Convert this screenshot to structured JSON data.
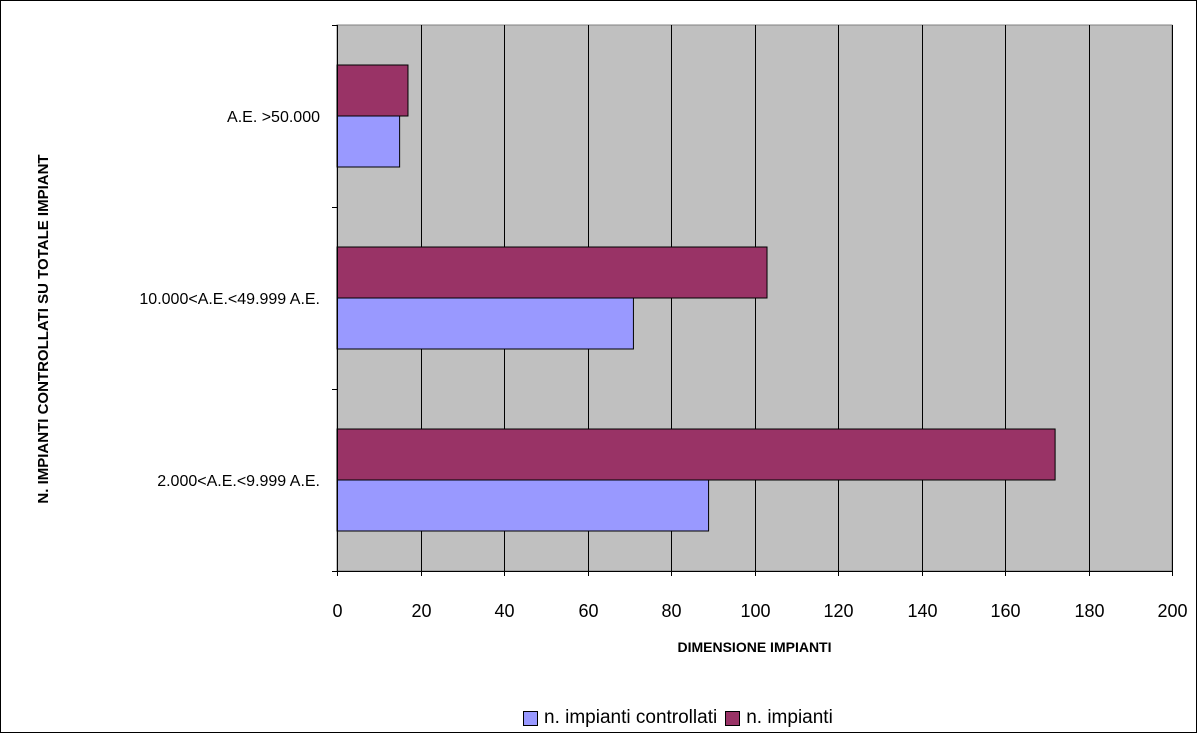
{
  "chart_data": {
    "type": "bar",
    "orientation": "horizontal",
    "xlabel": "DIMENSIONE IMPIANTI",
    "ylabel": "N. IMPIANTI CONTROLLATI SU TOTALE IMPIANT",
    "categories": [
      "A.E. >50.000",
      "10.000<A.E.<49.999 A.E.",
      "2.000<A.E.<9.999 A.E."
    ],
    "series": [
      {
        "name": "n. impianti controllati",
        "color": "#9999ff",
        "values": [
          15,
          71,
          89
        ]
      },
      {
        "name": "n. impianti",
        "color": "#993366",
        "values": [
          17,
          103,
          172
        ]
      }
    ],
    "xlim": [
      0,
      200
    ],
    "xticks": [
      0,
      20,
      40,
      60,
      80,
      100,
      120,
      140,
      160,
      180,
      200
    ],
    "grid": true,
    "plot_background": "#c0c0c0",
    "legend_position": "bottom"
  }
}
